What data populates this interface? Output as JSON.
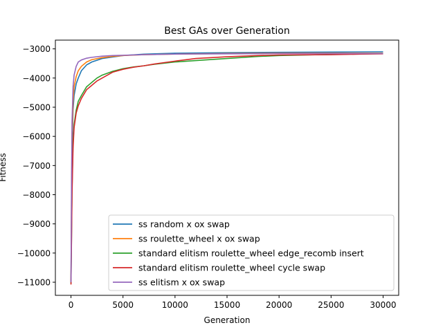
{
  "chart_data": {
    "type": "line",
    "title": "Best GAs over Generation",
    "xlabel": "Generation",
    "ylabel": "Fitness",
    "xlim": [
      -1500,
      31500
    ],
    "ylim": [
      -11450,
      -2700
    ],
    "xticks": [
      0,
      5000,
      10000,
      15000,
      20000,
      25000,
      30000
    ],
    "xtick_labels": [
      "0",
      "5000",
      "10000",
      "15000",
      "20000",
      "25000",
      "30000"
    ],
    "yticks": [
      -11000,
      -10000,
      -9000,
      -8000,
      -7000,
      -6000,
      -5000,
      -4000,
      -3000
    ],
    "ytick_labels": [
      "−11000",
      "−10000",
      "−9000",
      "−8000",
      "−7000",
      "−6000",
      "−5000",
      "−4000",
      "−3000"
    ],
    "grid": false,
    "legend_position": "bottom-right",
    "series": [
      {
        "name": "ss random x ox swap",
        "color": "#1f77b4",
        "x": [
          0,
          50,
          100,
          200,
          300,
          500,
          700,
          1000,
          1500,
          2000,
          3000,
          4000,
          5000,
          7000,
          10000,
          15000,
          20000,
          25000,
          30000
        ],
        "y": [
          -11000,
          -8500,
          -6500,
          -5100,
          -4600,
          -4200,
          -4000,
          -3750,
          -3550,
          -3450,
          -3330,
          -3280,
          -3230,
          -3180,
          -3150,
          -3130,
          -3120,
          -3110,
          -3100
        ]
      },
      {
        "name": "ss roulette_wheel x ox swap",
        "color": "#ff7f0e",
        "x": [
          0,
          50,
          100,
          200,
          300,
          500,
          700,
          1000,
          1500,
          2000,
          3000,
          4000,
          5000,
          7000,
          10000,
          15000,
          20000,
          25000,
          30000
        ],
        "y": [
          -11000,
          -8000,
          -6000,
          -4800,
          -4300,
          -3950,
          -3750,
          -3600,
          -3450,
          -3370,
          -3300,
          -3260,
          -3230,
          -3200,
          -3180,
          -3160,
          -3150,
          -3150,
          -3150
        ]
      },
      {
        "name": "standard elitism roulette_wheel edge_recomb insert",
        "color": "#2ca02c",
        "x": [
          0,
          50,
          100,
          200,
          300,
          500,
          700,
          1000,
          1500,
          2000,
          2500,
          3000,
          4000,
          5000,
          6000,
          7000,
          8000,
          10000,
          12000,
          15000,
          18000,
          20000,
          25000,
          30000
        ],
        "y": [
          -11050,
          -9500,
          -7800,
          -6200,
          -5600,
          -5100,
          -4800,
          -4600,
          -4300,
          -4150,
          -4000,
          -3900,
          -3770,
          -3680,
          -3620,
          -3580,
          -3530,
          -3450,
          -3400,
          -3330,
          -3260,
          -3230,
          -3190,
          -3160
        ]
      },
      {
        "name": "standard elitism roulette_wheel cycle swap",
        "color": "#d62728",
        "x": [
          0,
          50,
          100,
          200,
          300,
          500,
          700,
          1000,
          1500,
          2000,
          2500,
          3000,
          4000,
          5000,
          6000,
          7000,
          8000,
          10000,
          12000,
          15000,
          18000,
          20000,
          25000,
          28000,
          30000
        ],
        "y": [
          -11080,
          -9600,
          -8000,
          -6400,
          -5700,
          -5200,
          -4950,
          -4700,
          -4400,
          -4250,
          -4100,
          -4000,
          -3800,
          -3700,
          -3630,
          -3580,
          -3520,
          -3420,
          -3330,
          -3270,
          -3230,
          -3210,
          -3200,
          -3180,
          -3170
        ]
      },
      {
        "name": "ss elitism x ox swap",
        "color": "#9467bd",
        "x": [
          0,
          50,
          100,
          200,
          300,
          500,
          700,
          1000,
          1500,
          2000,
          3000,
          4000,
          5000,
          7000,
          10000,
          15000,
          20000,
          25000,
          30000
        ],
        "y": [
          -11000,
          -7800,
          -5500,
          -4300,
          -3900,
          -3600,
          -3450,
          -3380,
          -3320,
          -3290,
          -3250,
          -3230,
          -3220,
          -3200,
          -3180,
          -3170,
          -3160,
          -3160,
          -3160
        ]
      }
    ]
  }
}
